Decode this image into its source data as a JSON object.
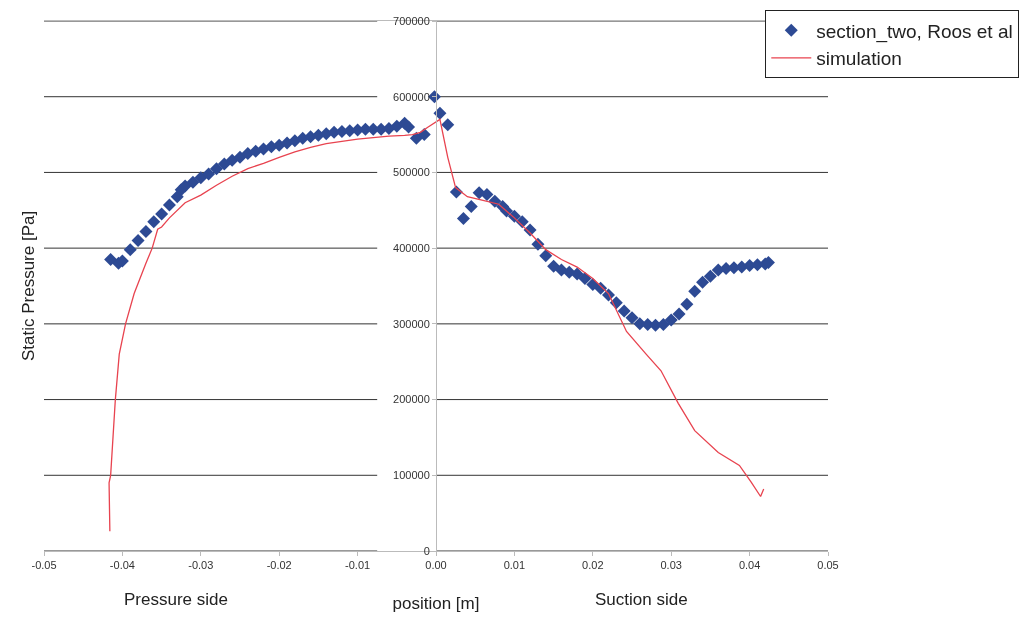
{
  "chart_data": {
    "type": "scatter",
    "xlabel": "position [m]",
    "ylabel": "Static Pressure [Pa]",
    "annotations": [
      "Pressure side",
      "Suction side"
    ],
    "xlim": [
      -0.05,
      0.05
    ],
    "xticks": [
      {
        "value": -0.05,
        "label": "-0.05"
      },
      {
        "value": -0.04,
        "label": "-0.04"
      },
      {
        "value": -0.03,
        "label": "-0.03"
      },
      {
        "value": -0.02,
        "label": "-0.02"
      },
      {
        "value": -0.01,
        "label": "-0.01"
      },
      {
        "value": 0,
        "label": "0.00"
      },
      {
        "value": 0.01,
        "label": "0.01"
      },
      {
        "value": 0.02,
        "label": "0.02"
      },
      {
        "value": 0.03,
        "label": "0.03"
      },
      {
        "value": 0.04,
        "label": "0.04"
      },
      {
        "value": 0.05,
        "label": "0.05"
      }
    ],
    "ylim": [
      0,
      700000
    ],
    "yticks": [
      0,
      100000,
      200000,
      300000,
      400000,
      500000,
      600000,
      700000
    ],
    "grid": "y",
    "legend": "top right",
    "series": [
      {
        "name": "section_two, Roos et al",
        "marker": "diamond",
        "color": "#2d4a94",
        "x": [
          -0.0415,
          -0.0405,
          -0.04,
          -0.039,
          -0.038,
          -0.037,
          -0.036,
          -0.035,
          -0.034,
          -0.033,
          -0.0325,
          -0.032,
          -0.031,
          -0.03,
          -0.029,
          -0.028,
          -0.027,
          -0.026,
          -0.025,
          -0.024,
          -0.023,
          -0.022,
          -0.021,
          -0.02,
          -0.019,
          -0.018,
          -0.017,
          -0.016,
          -0.015,
          -0.014,
          -0.013,
          -0.012,
          -0.011,
          -0.01,
          -0.009,
          -0.008,
          -0.007,
          -0.006,
          -0.005,
          -0.004,
          -0.0035,
          -0.0025,
          -0.0015,
          -0.0002,
          0.0005,
          0.0015,
          0.0026,
          0.0035,
          0.0045,
          0.0055,
          0.0065,
          0.0075,
          0.0085,
          0.009,
          0.01,
          0.011,
          0.012,
          0.013,
          0.014,
          0.015,
          0.016,
          0.017,
          0.018,
          0.019,
          0.02,
          0.021,
          0.022,
          0.023,
          0.024,
          0.025,
          0.026,
          0.027,
          0.028,
          0.029,
          0.03,
          0.031,
          0.032,
          0.033,
          0.034,
          0.035,
          0.036,
          0.037,
          0.038,
          0.039,
          0.04,
          0.041,
          0.042,
          0.0424
        ],
        "values": [
          385000,
          380000,
          383000,
          398000,
          410000,
          422000,
          435000,
          445000,
          457000,
          468000,
          477000,
          482000,
          487000,
          493000,
          498000,
          505000,
          511000,
          516000,
          520000,
          525000,
          528000,
          531000,
          534000,
          536000,
          539000,
          542000,
          545000,
          547000,
          549000,
          551000,
          553000,
          554000,
          555000,
          556000,
          557000,
          557000,
          557000,
          558000,
          561000,
          565000,
          560000,
          545000,
          550000,
          600000,
          578000,
          563000,
          474000,
          439000,
          455000,
          473000,
          471000,
          462000,
          455000,
          449000,
          442000,
          435000,
          424000,
          405000,
          390000,
          376000,
          371000,
          368000,
          366000,
          360000,
          352000,
          347000,
          338000,
          328000,
          317000,
          308000,
          300000,
          299000,
          298000,
          299000,
          305000,
          313000,
          326000,
          343000,
          355000,
          363000,
          371000,
          373000,
          374000,
          375000,
          377000,
          378000,
          379000,
          381000
        ]
      },
      {
        "name": "simulation",
        "type": "line",
        "marker": "none",
        "line_style": "solid",
        "color": "#e8434f",
        "x": [
          -0.0416,
          -0.0417,
          -0.0415,
          -0.0409,
          -0.0404,
          -0.0396,
          -0.0385,
          -0.037,
          -0.0362,
          -0.0355,
          -0.035,
          -0.034,
          -0.032,
          -0.03,
          -0.028,
          -0.026,
          -0.024,
          -0.022,
          -0.02,
          -0.018,
          -0.016,
          -0.014,
          -0.012,
          -0.01,
          -0.008,
          -0.006,
          -0.004,
          -0.003,
          -0.002,
          -0.001,
          0.0005,
          0.0015,
          0.0025,
          0.004,
          0.006,
          0.008,
          0.01,
          0.012,
          0.014,
          0.016,
          0.018,
          0.02,
          0.022,
          0.0243,
          0.0268,
          0.0287,
          0.0309,
          0.033,
          0.036,
          0.0387,
          0.0402,
          0.0414,
          0.0418
        ],
        "values": [
          26000,
          90000,
          100000,
          200000,
          260000,
          300000,
          340000,
          380000,
          400000,
          425000,
          428000,
          440000,
          460000,
          470000,
          483000,
          495000,
          505000,
          512000,
          520000,
          527000,
          533000,
          538000,
          541000,
          544000,
          546000,
          548000,
          549000,
          550000,
          553000,
          560000,
          570000,
          520000,
          480000,
          468000,
          463000,
          458000,
          440000,
          420000,
          398000,
          385000,
          375000,
          360000,
          340000,
          290000,
          260000,
          238000,
          195000,
          159000,
          130000,
          113000,
          91000,
          72000,
          82000
        ]
      }
    ]
  }
}
